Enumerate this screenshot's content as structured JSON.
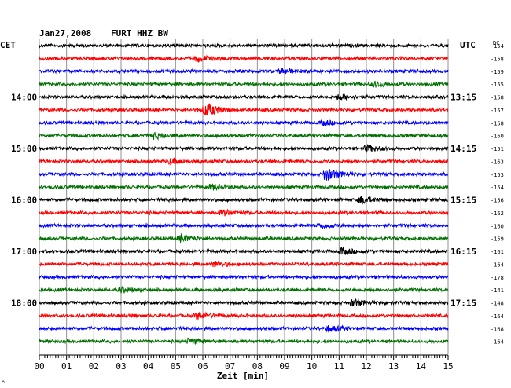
{
  "header": {
    "date": "Jan27,2008",
    "station": "FURT HHZ BW"
  },
  "left_tz": "CET",
  "right_tz": "UTC",
  "dc_label": "DC",
  "xlabel": "Zeit [min]",
  "corner_mark": "^",
  "chart_data": {
    "type": "line",
    "title": "",
    "xlabel": "Zeit [min]",
    "xlim": [
      0,
      15
    ],
    "x_ticks": [
      "00",
      "01",
      "02",
      "03",
      "04",
      "05",
      "06",
      "07",
      "08",
      "09",
      "10",
      "11",
      "12",
      "13",
      "14",
      "15"
    ],
    "left_hour_labels": [
      "14:00",
      "15:00",
      "16:00",
      "17:00",
      "18:00"
    ],
    "right_hour_labels": [
      "13:15",
      "14:15",
      "15:15",
      "16:15",
      "17:15"
    ],
    "trace_colors": [
      "#000000",
      "#ff0000",
      "#0000ff",
      "#007000"
    ],
    "traces": [
      {
        "dc": "-154"
      },
      {
        "dc": "-158"
      },
      {
        "dc": "-159"
      },
      {
        "dc": "-155"
      },
      {
        "dc": "-158"
      },
      {
        "dc": "-157"
      },
      {
        "dc": "-158"
      },
      {
        "dc": "-160"
      },
      {
        "dc": "-151"
      },
      {
        "dc": "-163"
      },
      {
        "dc": "-153"
      },
      {
        "dc": "-154"
      },
      {
        "dc": "-156"
      },
      {
        "dc": "-162"
      },
      {
        "dc": "-160"
      },
      {
        "dc": "-159"
      },
      {
        "dc": "-161"
      },
      {
        "dc": "-164"
      },
      {
        "dc": "-178"
      },
      {
        "dc": "-141"
      },
      {
        "dc": "-148"
      },
      {
        "dc": "-164"
      },
      {
        "dc": "-168"
      },
      {
        "dc": "-164"
      }
    ],
    "events": [
      {
        "trace": 1,
        "minute": 5.8,
        "amp": 1.8
      },
      {
        "trace": 2,
        "minute": 8.9,
        "amp": 1.5
      },
      {
        "trace": 3,
        "minute": 12.3,
        "amp": 1.6
      },
      {
        "trace": 4,
        "minute": 11.0,
        "amp": 1.6
      },
      {
        "trace": 5,
        "minute": 6.1,
        "amp": 4.5
      },
      {
        "trace": 6,
        "minute": 10.4,
        "amp": 1.5
      },
      {
        "trace": 7,
        "minute": 4.2,
        "amp": 1.8
      },
      {
        "trace": 8,
        "minute": 12.0,
        "amp": 2.0
      },
      {
        "trace": 9,
        "minute": 4.8,
        "amp": 1.5
      },
      {
        "trace": 10,
        "minute": 10.5,
        "amp": 4.0
      },
      {
        "trace": 11,
        "minute": 6.3,
        "amp": 1.8
      },
      {
        "trace": 12,
        "minute": 11.8,
        "amp": 2.2
      },
      {
        "trace": 13,
        "minute": 6.7,
        "amp": 1.8
      },
      {
        "trace": 14,
        "minute": 10.3,
        "amp": 1.5
      },
      {
        "trace": 15,
        "minute": 5.2,
        "amp": 2.2
      },
      {
        "trace": 16,
        "minute": 11.1,
        "amp": 2.0
      },
      {
        "trace": 17,
        "minute": 6.4,
        "amp": 1.7
      },
      {
        "trace": 19,
        "minute": 3.0,
        "amp": 1.5
      },
      {
        "trace": 20,
        "minute": 11.5,
        "amp": 2.0
      },
      {
        "trace": 21,
        "minute": 5.8,
        "amp": 2.2
      },
      {
        "trace": 22,
        "minute": 10.6,
        "amp": 1.7
      },
      {
        "trace": 23,
        "minute": 5.5,
        "amp": 1.8
      }
    ]
  }
}
